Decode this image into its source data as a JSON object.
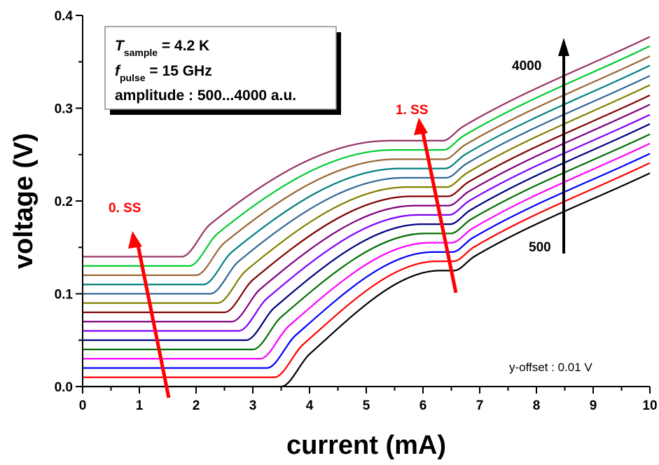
{
  "chart_data": {
    "type": "line",
    "title": "",
    "xlabel": "current (mA)",
    "ylabel": "voltage (V)",
    "xlim": [
      0,
      10
    ],
    "ylim": [
      0,
      0.4
    ],
    "xticks": [
      "0",
      "1",
      "2",
      "3",
      "4",
      "5",
      "6",
      "7",
      "8",
      "9",
      "10"
    ],
    "yticks": [
      "0.0",
      "0.1",
      "0.2",
      "0.3",
      "0.4"
    ],
    "grid": false,
    "legend_box": {
      "line1_symbol": "T",
      "line1_sub": "sample",
      "line1_rest": " = 4.2 K",
      "line2_symbol": "f",
      "line2_sub": "pulse",
      "line2_rest": " = 15 GHz",
      "line3": "amplitude : 500...4000 a.u.",
      "placement": "top-left"
    },
    "annotations": {
      "ss0": "0. SS",
      "ss1": "1. SS",
      "amp_high": "4000",
      "amp_low": "500",
      "offset_note": "y-offset : 0.01 V",
      "arrow_color_ss": "#ff0000",
      "arrow_color_amp": "#000000"
    },
    "series": [
      {
        "color": "#000000",
        "x": [
          0,
          3.5,
          4.0,
          6.3,
          6.55,
          6.9,
          10
        ],
        "y": [
          0.0,
          0.0,
          0.035,
          0.125,
          0.125,
          0.14,
          0.23
        ]
      },
      {
        "color": "#ff0000",
        "x": [
          0,
          3.38,
          3.88,
          6.24,
          6.54,
          6.89,
          10
        ],
        "y": [
          0.01,
          0.01,
          0.045,
          0.135,
          0.135,
          0.15,
          0.241
        ]
      },
      {
        "color": "#0000ff",
        "x": [
          0,
          3.25,
          3.75,
          6.17,
          6.52,
          6.87,
          10
        ],
        "y": [
          0.02,
          0.02,
          0.055,
          0.145,
          0.145,
          0.16,
          0.251
        ]
      },
      {
        "color": "#ff00ff",
        "x": [
          0,
          3.13,
          3.63,
          6.11,
          6.51,
          6.86,
          10
        ],
        "y": [
          0.03,
          0.03,
          0.065,
          0.155,
          0.155,
          0.17,
          0.262
        ]
      },
      {
        "color": "#007000",
        "x": [
          0,
          3.0,
          3.5,
          6.04,
          6.49,
          6.84,
          10
        ],
        "y": [
          0.04,
          0.04,
          0.075,
          0.165,
          0.165,
          0.18,
          0.272
        ]
      },
      {
        "color": "#000080",
        "x": [
          0,
          2.88,
          3.38,
          5.98,
          6.48,
          6.83,
          10
        ],
        "y": [
          0.05,
          0.05,
          0.085,
          0.175,
          0.175,
          0.19,
          0.283
        ]
      },
      {
        "color": "#8000ff",
        "x": [
          0,
          2.75,
          3.25,
          5.91,
          6.46,
          6.81,
          10
        ],
        "y": [
          0.06,
          0.06,
          0.095,
          0.185,
          0.185,
          0.2,
          0.293
        ]
      },
      {
        "color": "#800080",
        "x": [
          0,
          2.63,
          3.13,
          5.85,
          6.45,
          6.8,
          10
        ],
        "y": [
          0.07,
          0.07,
          0.105,
          0.195,
          0.195,
          0.21,
          0.304
        ]
      },
      {
        "color": "#800000",
        "x": [
          0,
          2.5,
          3.0,
          5.79,
          6.44,
          6.79,
          10
        ],
        "y": [
          0.08,
          0.08,
          0.115,
          0.205,
          0.205,
          0.22,
          0.314
        ]
      },
      {
        "color": "#808000",
        "x": [
          0,
          2.38,
          2.88,
          5.72,
          6.42,
          6.77,
          10
        ],
        "y": [
          0.09,
          0.09,
          0.125,
          0.215,
          0.215,
          0.23,
          0.325
        ]
      },
      {
        "color": "#336699",
        "x": [
          0,
          2.25,
          2.75,
          5.66,
          6.41,
          6.76,
          10
        ],
        "y": [
          0.1,
          0.1,
          0.135,
          0.225,
          0.225,
          0.24,
          0.335
        ]
      },
      {
        "color": "#008080",
        "x": [
          0,
          2.13,
          2.63,
          5.59,
          6.39,
          6.74,
          10
        ],
        "y": [
          0.11,
          0.11,
          0.145,
          0.235,
          0.235,
          0.25,
          0.346
        ]
      },
      {
        "color": "#996633",
        "x": [
          0,
          2.0,
          2.5,
          5.53,
          6.38,
          6.73,
          10
        ],
        "y": [
          0.12,
          0.12,
          0.155,
          0.245,
          0.245,
          0.26,
          0.356
        ]
      },
      {
        "color": "#00cc33",
        "x": [
          0,
          1.88,
          2.38,
          5.46,
          6.36,
          6.71,
          10
        ],
        "y": [
          0.13,
          0.13,
          0.165,
          0.255,
          0.255,
          0.27,
          0.367
        ]
      },
      {
        "color": "#993366",
        "x": [
          0,
          1.75,
          2.25,
          5.4,
          6.35,
          6.7,
          10
        ],
        "y": [
          0.14,
          0.14,
          0.175,
          0.265,
          0.265,
          0.28,
          0.377
        ]
      }
    ]
  }
}
